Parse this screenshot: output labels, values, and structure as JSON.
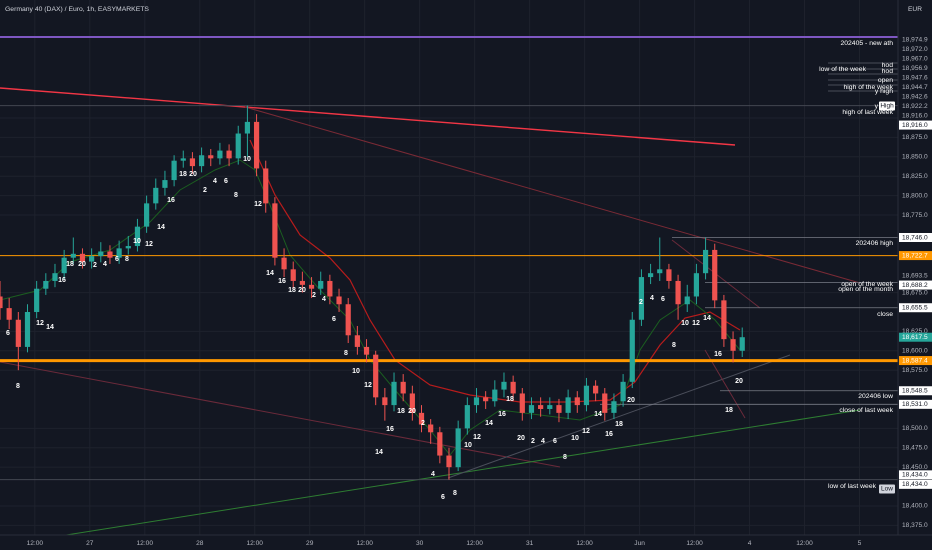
{
  "chart_data": {
    "type": "candlestick",
    "title": "Germany 40 (DAX) / Euro, 1h, EASYMARKETS",
    "currency": "EUR",
    "up_color": "#26a69a",
    "down_color": "#ef5350",
    "grid": true,
    "x": [
      0,
      2,
      4,
      6,
      8,
      10,
      12,
      14,
      16,
      18,
      20,
      22,
      24,
      26,
      28,
      30,
      32,
      34,
      36,
      38,
      40,
      42,
      44,
      46,
      48,
      50,
      52,
      54,
      56,
      58,
      60,
      62,
      64,
      66,
      68,
      70,
      72,
      74,
      76,
      78,
      80,
      82,
      84,
      86,
      88,
      90,
      92,
      94,
      96,
      98,
      100,
      102,
      104,
      106,
      108,
      110,
      112,
      114,
      116,
      118,
      120,
      122,
      124,
      126,
      128,
      130,
      132,
      134,
      136,
      138,
      140,
      142,
      144,
      146,
      148,
      150,
      152,
      154,
      156,
      158,
      160,
      162
    ],
    "open": [
      18670,
      18655,
      18640,
      18605,
      18650,
      18680,
      18690,
      18700,
      18720,
      18725,
      18715,
      18722,
      18728,
      18720,
      18732,
      18735,
      18760,
      18790,
      18810,
      18820,
      18845,
      18848,
      18838,
      18852,
      18848,
      18858,
      18848,
      18880,
      18895,
      18835,
      18790,
      18720,
      18705,
      18690,
      18685,
      18680,
      18690,
      18670,
      18660,
      18620,
      18605,
      18595,
      18540,
      18530,
      18560,
      18545,
      18520,
      18505,
      18495,
      18465,
      18450,
      18500,
      18530,
      18540,
      18535,
      18550,
      18560,
      18545,
      18520,
      18530,
      18525,
      18530,
      18520,
      18540,
      18530,
      18555,
      18545,
      18520,
      18535,
      18560,
      18640,
      18695,
      18700,
      18705,
      18690,
      18660,
      18670,
      18700,
      18730,
      18665,
      18615,
      18600
    ],
    "high": [
      18690,
      18668,
      18650,
      18660,
      18690,
      18700,
      18712,
      18730,
      18746,
      18732,
      18732,
      18740,
      18736,
      18742,
      18748,
      18770,
      18800,
      18822,
      18832,
      18852,
      18858,
      18856,
      18862,
      18860,
      18868,
      18866,
      18890,
      18916,
      18905,
      18845,
      18798,
      18732,
      18715,
      18702,
      18695,
      18702,
      18698,
      18680,
      18668,
      18632,
      18615,
      18600,
      18552,
      18572,
      18570,
      18555,
      18530,
      18512,
      18502,
      18475,
      18510,
      18540,
      18552,
      18548,
      18562,
      18572,
      18568,
      18552,
      18540,
      18540,
      18540,
      18538,
      18550,
      18548,
      18565,
      18562,
      18552,
      18545,
      18570,
      18650,
      18705,
      18712,
      18746,
      18712,
      18698,
      18685,
      18712,
      18746,
      18738,
      18672,
      18625,
      18630
    ],
    "low": [
      18640,
      18628,
      18575,
      18598,
      18642,
      18672,
      18682,
      18692,
      18712,
      18706,
      18706,
      18714,
      18712,
      18712,
      18724,
      18728,
      18752,
      18782,
      18800,
      18812,
      18836,
      18828,
      18830,
      18838,
      18840,
      18838,
      18840,
      18850,
      18825,
      18778,
      18710,
      18695,
      18680,
      18675,
      18668,
      18672,
      18660,
      18650,
      18610,
      18595,
      18585,
      18530,
      18510,
      18522,
      18535,
      18510,
      18495,
      18480,
      18455,
      18434,
      18445,
      18492,
      18520,
      18525,
      18528,
      18540,
      18535,
      18510,
      18512,
      18515,
      18518,
      18508,
      18512,
      18520,
      18522,
      18535,
      18510,
      18512,
      18528,
      18552,
      18632,
      18686,
      18690,
      18680,
      18640,
      18650,
      18660,
      18692,
      18655,
      18605,
      18585,
      18592
    ],
    "close": [
      18655,
      18640,
      18605,
      18650,
      18680,
      18690,
      18700,
      18720,
      18725,
      18715,
      18722,
      18728,
      18720,
      18732,
      18735,
      18760,
      18790,
      18810,
      18820,
      18845,
      18848,
      18838,
      18852,
      18848,
      18858,
      18848,
      18880,
      18895,
      18835,
      18790,
      18720,
      18705,
      18690,
      18685,
      18680,
      18690,
      18670,
      18660,
      18620,
      18605,
      18595,
      18540,
      18530,
      18560,
      18545,
      18520,
      18505,
      18495,
      18465,
      18450,
      18500,
      18530,
      18540,
      18535,
      18550,
      18560,
      18545,
      18520,
      18530,
      18525,
      18530,
      18520,
      18540,
      18530,
      18555,
      18545,
      18520,
      18535,
      18560,
      18640,
      18695,
      18700,
      18705,
      18690,
      18660,
      18670,
      18700,
      18730,
      18665,
      18615,
      18600,
      18617.5
    ],
    "xlim": [
      0,
      196
    ],
    "xticks": [
      {
        "value": 7.6,
        "label": "12:00"
      },
      {
        "value": 19.6,
        "label": "27"
      },
      {
        "value": 31.6,
        "label": "12:00"
      },
      {
        "value": 43.6,
        "label": "28"
      },
      {
        "value": 55.6,
        "label": "12:00"
      },
      {
        "value": 67.6,
        "label": "29"
      },
      {
        "value": 79.6,
        "label": "12:00"
      },
      {
        "value": 91.6,
        "label": "30"
      },
      {
        "value": 103.6,
        "label": "12:00"
      },
      {
        "value": 115.6,
        "label": "31"
      },
      {
        "value": 127.6,
        "label": "12:00"
      },
      {
        "value": 139.6,
        "label": "Jun"
      },
      {
        "value": 151.6,
        "label": "12:00"
      },
      {
        "value": 163.6,
        "label": "4"
      },
      {
        "value": 175.6,
        "label": "12:00"
      },
      {
        "value": 187.6,
        "label": "5"
      }
    ],
    "ylim": [
      18362.6,
      19039.2
    ],
    "yticks": [
      {
        "value": 18375,
        "label": "18,375.0"
      },
      {
        "value": 18400,
        "label": "18,400.0"
      },
      {
        "value": 18450,
        "label": "18,450.0"
      },
      {
        "value": 18475,
        "label": "18,475.0"
      },
      {
        "value": 18500,
        "label": "18,500.0"
      },
      {
        "value": 18575,
        "label": "18,575.0"
      },
      {
        "value": 18600,
        "label": "18,600.0"
      },
      {
        "value": 18625,
        "label": "18,625.0"
      },
      {
        "value": 18675,
        "label": "18,675.0"
      },
      {
        "value": 18775,
        "label": "18,775.0"
      },
      {
        "value": 18800,
        "label": "18,800.0"
      },
      {
        "value": 18825,
        "label": "18,825.0"
      },
      {
        "value": 18850,
        "label": "18,850.0"
      },
      {
        "value": 18875,
        "label": "18,875.0"
      },
      {
        "value": 18900,
        "label": "18,900.0"
      }
    ],
    "price_badges": [
      {
        "value": 18974.9,
        "label": "18,974.9",
        "color": "#131722"
      },
      {
        "value": 18972.0,
        "label": "18,972.0",
        "color": "#131722"
      },
      {
        "value": 18967.0,
        "label": "18,967.0",
        "color": "#131722"
      },
      {
        "value": 18956.9,
        "label": "18,956.9",
        "color": "#131722"
      },
      {
        "value": 18947.6,
        "label": "18,947.6",
        "color": "#131722"
      },
      {
        "value": 18944.7,
        "label": "18,944.7",
        "color": "#131722"
      },
      {
        "value": 18942.6,
        "label": "18,942.6",
        "color": "#131722"
      },
      {
        "value": 18922.2,
        "label": "18,922.2",
        "color": "#131722"
      },
      {
        "value": 18916.0,
        "label": "18,916.0",
        "color": "#131722"
      },
      {
        "value": 18916.0,
        "label": "18,916.0",
        "color": "#ffffff"
      },
      {
        "value": 18746.0,
        "label": "18,746.0",
        "color": "#ffffff"
      },
      {
        "value": 18722.7,
        "label": "18,722.7",
        "color": "#ff9800"
      },
      {
        "value": 18693.5,
        "label": "18,693.5",
        "color": "#131722"
      },
      {
        "value": 18688.2,
        "label": "18,688.2",
        "color": "#ffffff"
      },
      {
        "value": 18655.5,
        "label": "18,655.5",
        "color": "#ffffff"
      },
      {
        "value": 18617.5,
        "label": "18,617.5",
        "color": "#26a69a"
      },
      {
        "value": 18587.4,
        "label": "18,587.4",
        "color": "#ff9800"
      },
      {
        "value": 18548.5,
        "label": "18,548.5",
        "color": "#ffffff"
      },
      {
        "value": 18531.0,
        "label": "18,531.0",
        "color": "#ffffff"
      },
      {
        "value": 18434.0,
        "label": "18,434.0",
        "color": "#ffffff"
      },
      {
        "value": 18434.0,
        "label": "18,434.0",
        "color": "#ffffff"
      }
    ],
    "level_labels": [
      "202405 - new ath",
      "hod",
      "low of the week",
      "hod",
      "open",
      "high of the week",
      "y high",
      "y",
      "high of last week",
      "202406 high",
      "open of the week",
      "open of the month",
      "close",
      "202406 low",
      "close of last week",
      "low of last week"
    ],
    "markers": [
      "High",
      "Low"
    ],
    "annotations": [
      "6",
      "8",
      "12",
      "14",
      "16",
      "18",
      "20",
      "2",
      "4",
      "6",
      "8",
      "10",
      "12",
      "14",
      "16",
      "18",
      "20",
      "2",
      "4",
      "6",
      "8",
      "10",
      "12",
      "14",
      "16",
      "18",
      "20",
      "2",
      "4",
      "6",
      "8",
      "10",
      "12",
      "14",
      "16",
      "18",
      "20",
      "2",
      "4",
      "6",
      "8",
      "10",
      "12",
      "14",
      "16",
      "18",
      "20",
      "2",
      "4",
      "6",
      "8",
      "10",
      "12",
      "14",
      "16",
      "18",
      "20",
      "2",
      "4",
      "6",
      "8",
      "10",
      "12",
      "14",
      "16",
      "18",
      "20"
    ]
  }
}
